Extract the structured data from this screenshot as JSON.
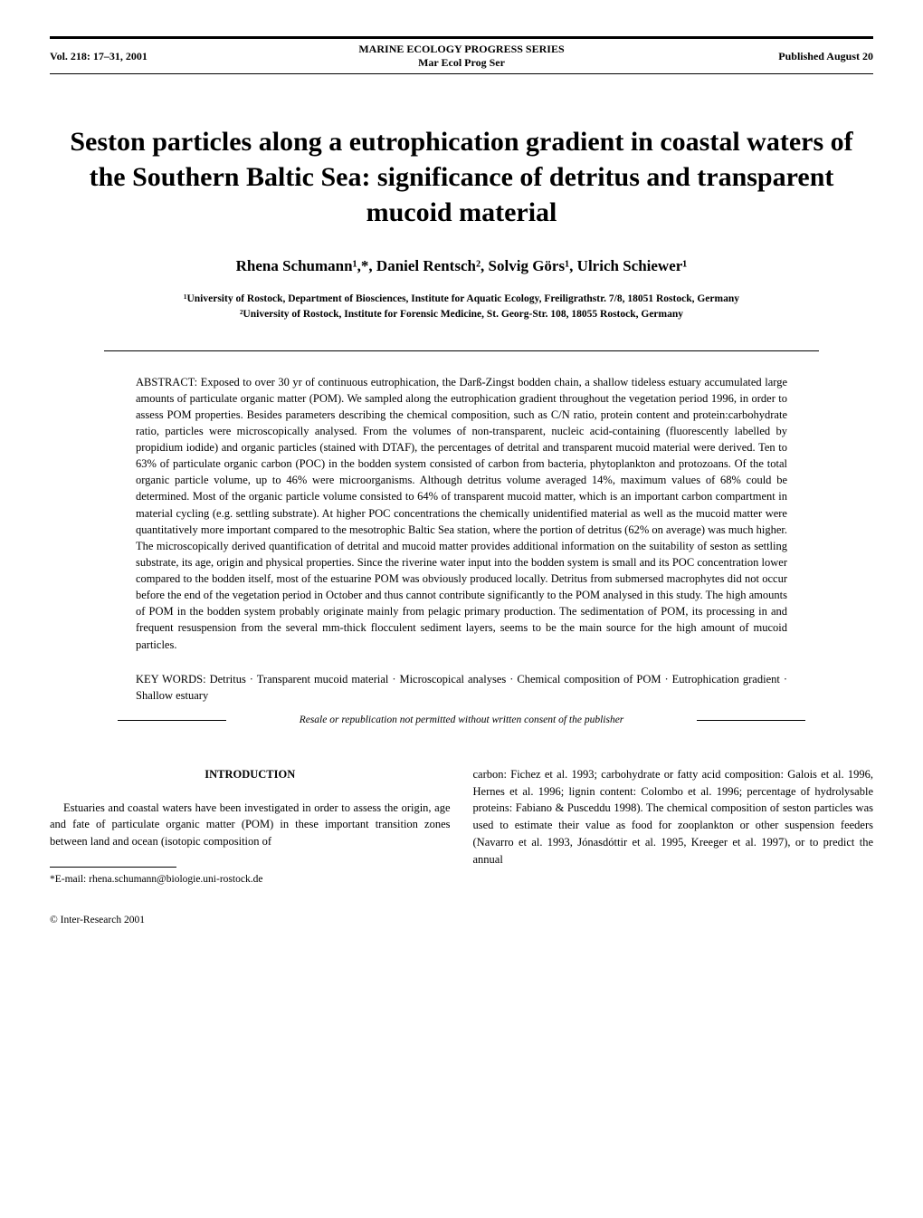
{
  "header": {
    "volume": "Vol. 218: 17–31, 2001",
    "series_full": "MARINE ECOLOGY PROGRESS SERIES",
    "series_abbrev": "Mar Ecol Prog Ser",
    "published": "Published August 20"
  },
  "title": "Seston particles along a eutrophication gradient in coastal waters of the Southern Baltic Sea: significance of detritus and transparent mucoid material",
  "authors": "Rhena Schumann¹,*, Daniel Rentsch², Solvig Görs¹, Ulrich Schiewer¹",
  "affiliations": {
    "aff1": "¹University of Rostock, Department of Biosciences, Institute for Aquatic Ecology, Freiligrathstr. 7/8, 18051 Rostock, Germany",
    "aff2": "²University of Rostock, Institute for Forensic Medicine, St. Georg-Str. 108, 18055 Rostock, Germany"
  },
  "abstract": {
    "label": "ABSTRACT: ",
    "text": "Exposed to over 30 yr of continuous eutrophication, the Darß-Zingst bodden chain, a shallow tideless estuary accumulated large amounts of particulate organic matter (POM). We sampled along the eutrophication gradient throughout the vegetation period 1996, in order to assess POM properties. Besides parameters describing the chemical composition, such as C/N ratio, protein content and protein:carbohydrate ratio, particles were microscopically analysed. From the volumes of non-transparent, nucleic acid-containing (fluorescently labelled by propidium iodide) and organic particles (stained with DTAF), the percentages of detrital and transparent mucoid material were derived. Ten to 63% of particulate organic carbon (POC) in the bodden system consisted of carbon from bacteria, phytoplankton and protozoans. Of the total organic particle volume, up to 46% were microorganisms. Although detritus volume averaged 14%, maximum values of 68% could be determined. Most of the organic particle volume consisted to 64% of transparent mucoid matter, which is an important carbon compartment in material cycling (e.g. settling substrate). At higher POC concentrations the chemically unidentified material as well as the mucoid matter were quantitatively more important compared to the mesotrophic Baltic Sea station, where the portion of detritus (62% on average) was much higher. The microscopically derived quantification of detrital and mucoid matter provides additional information on the suitability of seston as settling substrate, its age, origin and physical properties. Since the riverine water input into the bodden system is small and its POC concentration lower compared to the bodden itself, most of the estuarine POM was obviously produced locally. Detritus from submersed macrophytes did not occur before the end of the vegetation period in October and thus cannot contribute significantly to the POM analysed in this study. The high amounts of POM in the bodden system probably originate mainly from pelagic primary production. The sedimentation of POM, its processing in and frequent resuspension from the several mm-thick flocculent sediment layers, seems to be the main source for the high amount of mucoid particles."
  },
  "keywords": {
    "label": "KEY WORDS:   ",
    "text": "Detritus · Transparent mucoid material · Microscopical analyses · Chemical composition of POM · Eutrophication gradient · Shallow estuary"
  },
  "resale_notice": "Resale or republication not permitted without written consent of the publisher",
  "body": {
    "introduction_heading": "INTRODUCTION",
    "col1_para": "Estuaries and coastal waters have been investigated in order to assess the origin, age and fate of particulate organic matter (POM) in these important transition zones between land and ocean (isotopic composition of",
    "col2_para": "carbon: Fichez et al. 1993; carbohydrate or fatty acid composition: Galois et al. 1996, Hernes et al. 1996; lignin content: Colombo et al. 1996; percentage of hydrolysable proteins: Fabiano & Pusceddu 1998). The chemical composition of seston particles was used to estimate their value as food for zooplankton or other suspension feeders (Navarro et al. 1993, Jónasdóttir et al. 1995, Kreeger et al. 1997), or to predict the annual"
  },
  "footnote": "*E-mail: rhena.schumann@biologie.uni-rostock.de",
  "copyright": "© Inter-Research 2001"
}
